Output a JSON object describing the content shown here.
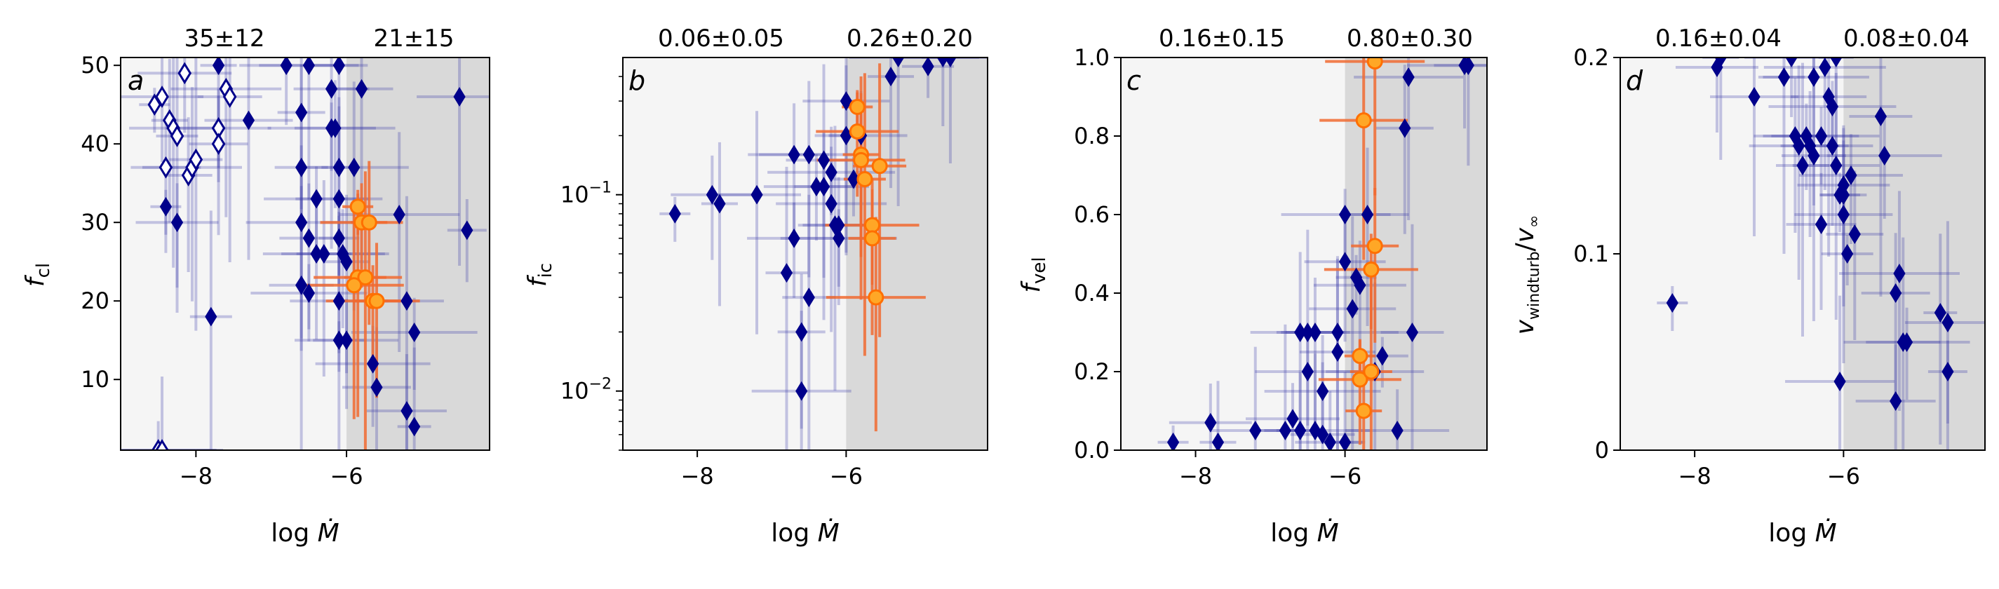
{
  "chart_data": [
    {
      "type": "scatter",
      "panel": "a",
      "ylabel": "f_cl",
      "xlabel": "log Ṁ",
      "top_labels": [
        "35±12",
        "21±15"
      ],
      "xlim": [
        -9,
        -4.1
      ],
      "ylim": [
        1,
        51
      ],
      "yscale": "linear",
      "xticks": [
        -8,
        -6
      ],
      "yticks": [
        10,
        20,
        30,
        40,
        50
      ],
      "yticklabels": [
        "10",
        "20",
        "30",
        "40",
        "50"
      ],
      "threshold_x": -6,
      "series": [
        {
          "marker": "open_diamond",
          "color": "#00008b",
          "points": [
            [
              -8.55,
              45
            ],
            [
              -8.45,
              46
            ],
            [
              -8.35,
              43
            ],
            [
              -8.3,
              42
            ],
            [
              -8.25,
              41
            ],
            [
              -8.15,
              49
            ],
            [
              -8.1,
              36
            ],
            [
              -8.05,
              37
            ],
            [
              -8.0,
              38
            ],
            [
              -7.7,
              42
            ],
            [
              -7.7,
              40
            ],
            [
              -7.6,
              47
            ],
            [
              -7.55,
              46
            ],
            [
              -8.5,
              1
            ],
            [
              -8.4,
              37
            ],
            [
              -8.45,
              1
            ]
          ]
        },
        {
          "marker": "filled_diamond",
          "color": "#00008b",
          "points": [
            [
              -8.4,
              32
            ],
            [
              -8.25,
              30
            ],
            [
              -7.7,
              50
            ],
            [
              -7.3,
              43
            ],
            [
              -7.8,
              18
            ],
            [
              -6.8,
              50
            ],
            [
              -6.6,
              44
            ],
            [
              -6.5,
              50
            ],
            [
              -6.6,
              37
            ],
            [
              -6.4,
              33
            ],
            [
              -6.5,
              28
            ],
            [
              -6.6,
              30
            ],
            [
              -6.6,
              22
            ],
            [
              -6.5,
              21
            ],
            [
              -6.4,
              26
            ],
            [
              -6.3,
              26
            ],
            [
              -6.2,
              47
            ],
            [
              -6.2,
              42
            ],
            [
              -6.15,
              42
            ],
            [
              -6.1,
              37
            ],
            [
              -6.1,
              33
            ],
            [
              -6.1,
              28
            ],
            [
              -6.05,
              26
            ],
            [
              -6.0,
              25
            ],
            [
              -6.1,
              20
            ],
            [
              -6.1,
              15
            ],
            [
              -6.0,
              15
            ],
            [
              -6.1,
              50
            ],
            [
              -5.9,
              37
            ],
            [
              -5.8,
              47
            ],
            [
              -5.65,
              12
            ],
            [
              -5.6,
              9
            ],
            [
              -5.3,
              31
            ],
            [
              -5.2,
              20
            ],
            [
              -5.1,
              16
            ],
            [
              -5.2,
              6
            ],
            [
              -5.1,
              4
            ],
            [
              -4.5,
              46
            ],
            [
              -4.4,
              29
            ]
          ]
        },
        {
          "marker": "orange_circle",
          "color": "#ff8c00",
          "points": [
            [
              -5.85,
              32
            ],
            [
              -5.8,
              30
            ],
            [
              -5.7,
              30
            ],
            [
              -5.85,
              23
            ],
            [
              -5.75,
              23
            ],
            [
              -5.65,
              20
            ],
            [
              -5.6,
              20
            ],
            [
              -5.9,
              22
            ]
          ]
        }
      ]
    },
    {
      "type": "scatter",
      "panel": "b",
      "ylabel": "f_ic",
      "xlabel": "log Ṁ",
      "top_labels": [
        "0.06±0.05",
        "0.26±0.20"
      ],
      "xlim": [
        -9,
        -4.1
      ],
      "ylim": [
        0.005,
        0.5
      ],
      "yscale": "log",
      "xticks": [
        -8,
        -6
      ],
      "yticks": [
        0.01,
        0.1
      ],
      "yticklabels": [
        "10^-2",
        "10^-1"
      ],
      "threshold_x": -6,
      "series": [
        {
          "marker": "filled_diamond",
          "color": "#00008b",
          "points": [
            [
              -8.3,
              0.08
            ],
            [
              -7.8,
              0.1
            ],
            [
              -7.7,
              0.09
            ],
            [
              -7.2,
              0.1
            ],
            [
              -6.8,
              0.04
            ],
            [
              -6.7,
              0.06
            ],
            [
              -6.6,
              0.02
            ],
            [
              -6.6,
              0.01
            ],
            [
              -6.5,
              0.03
            ],
            [
              -6.4,
              0.11
            ],
            [
              -6.3,
              0.11
            ],
            [
              -6.2,
              0.09
            ],
            [
              -6.15,
              0.07
            ],
            [
              -6.1,
              0.06
            ],
            [
              -6.7,
              0.16
            ],
            [
              -6.5,
              0.16
            ],
            [
              -6.3,
              0.15
            ],
            [
              -6.2,
              0.13
            ],
            [
              -6.1,
              0.07
            ],
            [
              -6.0,
              0.2
            ],
            [
              -6.0,
              0.3
            ],
            [
              -5.9,
              0.12
            ],
            [
              -5.8,
              0.2
            ],
            [
              -5.4,
              0.4
            ],
            [
              -5.3,
              0.5
            ],
            [
              -4.9,
              0.45
            ],
            [
              -4.7,
              0.5
            ],
            [
              -4.6,
              0.5
            ]
          ]
        },
        {
          "marker": "orange_circle",
          "color": "#ff8c00",
          "points": [
            [
              -5.85,
              0.28
            ],
            [
              -5.85,
              0.21
            ],
            [
              -5.8,
              0.16
            ],
            [
              -5.8,
              0.15
            ],
            [
              -5.75,
              0.12
            ],
            [
              -5.65,
              0.07
            ],
            [
              -5.65,
              0.06
            ],
            [
              -5.6,
              0.03
            ],
            [
              -5.55,
              0.14
            ]
          ]
        }
      ]
    },
    {
      "type": "scatter",
      "panel": "c",
      "ylabel": "f_vel",
      "xlabel": "log Ṁ",
      "top_labels": [
        "0.16±0.15",
        "0.80±0.30"
      ],
      "xlim": [
        -9,
        -4.1
      ],
      "ylim": [
        0,
        1.0
      ],
      "yscale": "linear",
      "xticks": [
        -8,
        -6
      ],
      "yticks": [
        0.0,
        0.2,
        0.4,
        0.6,
        0.8,
        1.0
      ],
      "yticklabels": [
        "0.0",
        "0.2",
        "0.4",
        "0.6",
        "0.8",
        "1.0"
      ],
      "threshold_x": -6,
      "series": [
        {
          "marker": "filled_diamond",
          "color": "#00008b",
          "points": [
            [
              -8.3,
              0.02
            ],
            [
              -7.8,
              0.07
            ],
            [
              -7.7,
              0.02
            ],
            [
              -7.2,
              0.05
            ],
            [
              -6.8,
              0.05
            ],
            [
              -6.7,
              0.08
            ],
            [
              -6.6,
              0.05
            ],
            [
              -6.6,
              0.3
            ],
            [
              -6.5,
              0.3
            ],
            [
              -6.5,
              0.2
            ],
            [
              -6.4,
              0.3
            ],
            [
              -6.4,
              0.05
            ],
            [
              -6.3,
              0.04
            ],
            [
              -6.3,
              0.15
            ],
            [
              -6.2,
              0.02
            ],
            [
              -6.1,
              0.3
            ],
            [
              -6.1,
              0.25
            ],
            [
              -6.0,
              0.6
            ],
            [
              -6.0,
              0.48
            ],
            [
              -6.0,
              0.02
            ],
            [
              -5.9,
              0.36
            ],
            [
              -5.85,
              0.44
            ],
            [
              -5.8,
              0.42
            ],
            [
              -5.7,
              0.6
            ],
            [
              -5.6,
              0.2
            ],
            [
              -5.5,
              0.24
            ],
            [
              -5.3,
              0.05
            ],
            [
              -5.2,
              0.82
            ],
            [
              -5.15,
              0.95
            ],
            [
              -5.1,
              0.3
            ],
            [
              -4.4,
              0.98
            ],
            [
              -4.35,
              0.98
            ]
          ]
        },
        {
          "marker": "orange_circle",
          "color": "#ff8c00",
          "points": [
            [
              -5.8,
              0.24
            ],
            [
              -5.8,
              0.18
            ],
            [
              -5.75,
              0.1
            ],
            [
              -5.75,
              0.84
            ],
            [
              -5.65,
              0.2
            ],
            [
              -5.65,
              0.46
            ],
            [
              -5.6,
              0.52
            ],
            [
              -5.6,
              0.99
            ]
          ]
        }
      ]
    },
    {
      "type": "scatter",
      "panel": "d",
      "ylabel": "v_windturb/v_∞",
      "xlabel": "log Ṁ",
      "top_labels": [
        "0.16±0.04",
        "0.08±0.04"
      ],
      "xlim": [
        -9,
        -4.1
      ],
      "ylim": [
        0,
        0.2
      ],
      "yscale": "linear",
      "xticks": [
        -8,
        -6
      ],
      "yticks": [
        0,
        0.1,
        0.2
      ],
      "yticklabels": [
        "0",
        "0.1",
        "0.2"
      ],
      "threshold_x": -6,
      "series": [
        {
          "marker": "filled_diamond",
          "color": "#00008b",
          "points": [
            [
              -8.3,
              0.075
            ],
            [
              -7.7,
              0.195
            ],
            [
              -7.65,
              0.2
            ],
            [
              -7.2,
              0.18
            ],
            [
              -6.8,
              0.19
            ],
            [
              -6.7,
              0.2
            ],
            [
              -6.65,
              0.16
            ],
            [
              -6.6,
              0.155
            ],
            [
              -6.55,
              0.145
            ],
            [
              -6.5,
              0.16
            ],
            [
              -6.45,
              0.155
            ],
            [
              -6.4,
              0.19
            ],
            [
              -6.4,
              0.15
            ],
            [
              -6.3,
              0.16
            ],
            [
              -6.3,
              0.115
            ],
            [
              -6.25,
              0.195
            ],
            [
              -6.2,
              0.18
            ],
            [
              -6.15,
              0.175
            ],
            [
              -6.15,
              0.155
            ],
            [
              -6.1,
              0.2
            ],
            [
              -6.1,
              0.145
            ],
            [
              -6.05,
              0.13
            ],
            [
              -6.0,
              0.135
            ],
            [
              -6.0,
              0.13
            ],
            [
              -6.0,
              0.12
            ],
            [
              -5.95,
              0.1
            ],
            [
              -5.9,
              0.14
            ],
            [
              -5.85,
              0.11
            ],
            [
              -6.05,
              0.035
            ],
            [
              -5.5,
              0.17
            ],
            [
              -5.45,
              0.15
            ],
            [
              -5.3,
              0.08
            ],
            [
              -5.25,
              0.09
            ],
            [
              -5.2,
              0.055
            ],
            [
              -5.15,
              0.055
            ],
            [
              -5.3,
              0.025
            ],
            [
              -4.7,
              0.07
            ],
            [
              -4.6,
              0.065
            ],
            [
              -4.6,
              0.04
            ]
          ]
        },
        {
          "marker": "orange_circle",
          "color": "#ff8c00",
          "points": []
        }
      ]
    }
  ]
}
